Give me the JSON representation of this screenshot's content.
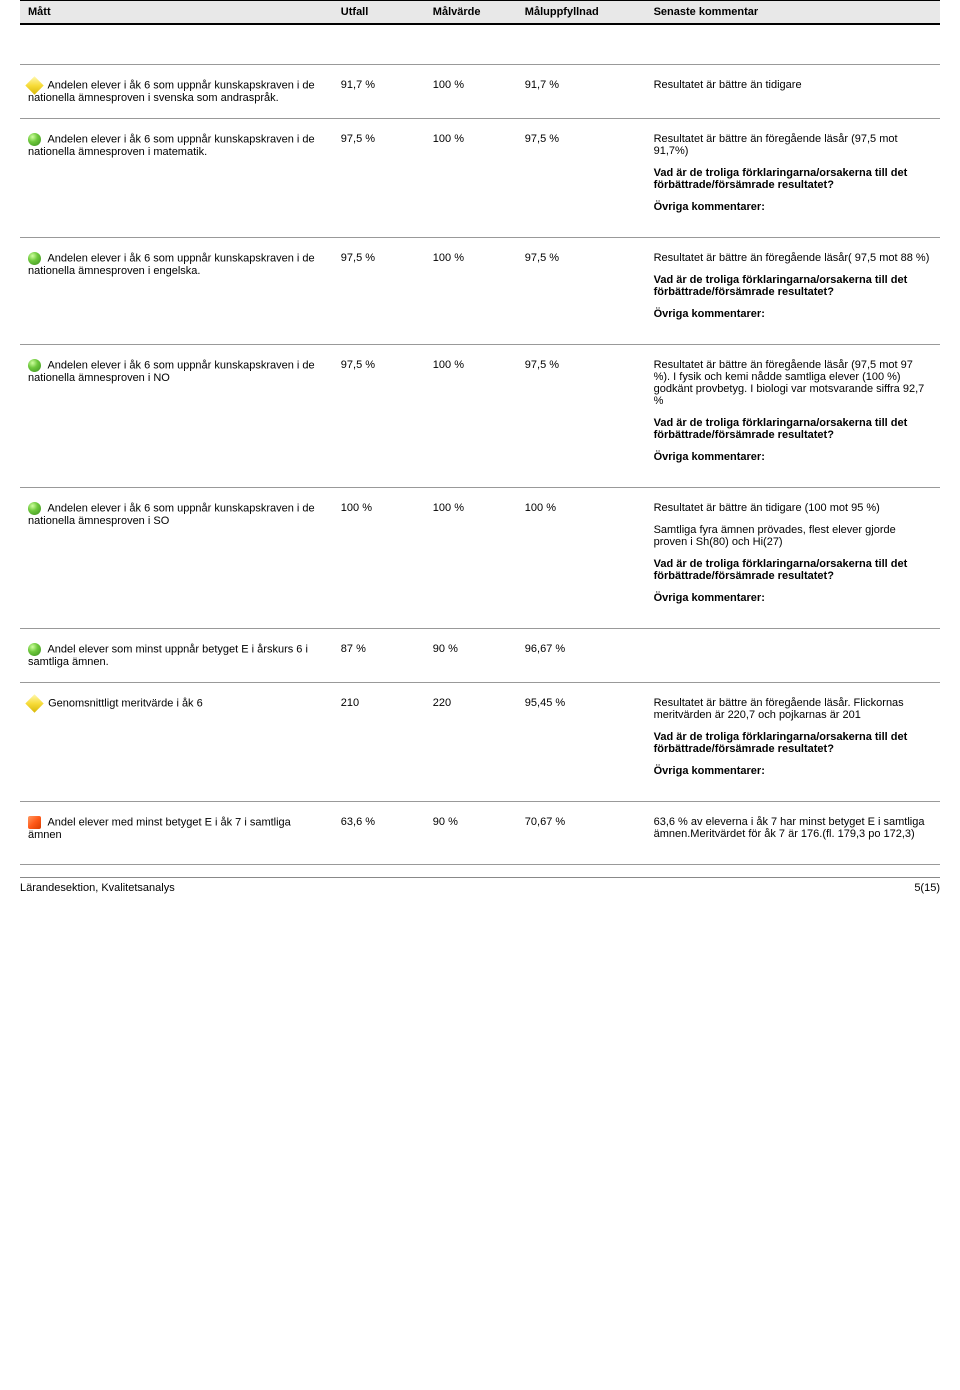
{
  "headers": {
    "matt": "Mått",
    "utfall": "Utfall",
    "malvarde": "Målvärde",
    "maluppfyllnad": "Måluppfyllnad",
    "senaste": "Senaste kommentar"
  },
  "vad_ar": "Vad är de troliga förklaringarna/orsakerna till det förbättrade/försämrade resultatet?",
  "ovriga": "Övriga kommentarer:",
  "r1": {
    "matt": "Andelen elever i åk 6 som uppnår kunskapskraven i de nationella ämnesproven i svenska som andraspråk.",
    "utfall": "91,7 %",
    "malvarde": "100 %",
    "malupp": "91,7 %",
    "c1": "Resultatet är bättre än tidigare"
  },
  "r2": {
    "matt": "Andelen elever i åk 6 som uppnår kunskapskraven i de nationella ämnesproven i matematik.",
    "utfall": "97,5 %",
    "malvarde": "100 %",
    "malupp": "97,5 %",
    "c1": "Resultatet är bättre än föregående läsår (97,5 mot 91,7%)"
  },
  "r3": {
    "matt": "Andelen elever i åk 6 som uppnår kunskapskraven i de nationella ämnesproven i engelska.",
    "utfall": "97,5 %",
    "malvarde": "100 %",
    "malupp": "97,5 %",
    "c1": "Resultatet är bättre än föregående läsår( 97,5 mot 88 %)"
  },
  "r4": {
    "matt": "Andelen elever i åk 6 som uppnår kunskapskraven i de nationella ämnesproven i NO",
    "utfall": "97,5 %",
    "malvarde": "100 %",
    "malupp": "97,5 %",
    "c1": "Resultatet är bättre än föregående läsår (97,5 mot 97 %). I fysik och kemi nådde samtliga elever (100 %) godkänt provbetyg. I biologi var motsvarande siffra 92,7 %"
  },
  "r5": {
    "matt": "Andelen elever i åk 6 som uppnår kunskapskraven i de nationella ämnesproven i SO",
    "utfall": "100 %",
    "malvarde": "100 %",
    "malupp": "100 %",
    "c1": "Resultatet är bättre än tidigare (100 mot 95 %)",
    "c2": "Samtliga fyra ämnen prövades, flest elever gjorde proven i Sh(80) och Hi(27)"
  },
  "r6": {
    "matt": "Andel elever som minst uppnår betyget E i årskurs 6 i samtliga ämnen.",
    "utfall": "87 %",
    "malvarde": "90 %",
    "malupp": "96,67 %"
  },
  "r7": {
    "matt": "Genomsnittligt meritvärde i åk 6",
    "utfall": "210",
    "malvarde": "220",
    "malupp": "95,45 %",
    "c1": "Resultatet är bättre än föregående läsår. Flickornas meritvärden är 220,7 och pojkarnas är 201"
  },
  "r8": {
    "matt": "Andel elever med minst betyget E i åk 7 i samtliga ämnen",
    "utfall": "63,6 %",
    "malvarde": "90 %",
    "malupp": "70,67 %",
    "c1": "63,6 % av eleverna i åk 7 har minst betyget E i samtliga ämnen.Meritvärdet för åk 7 är 176.(fl. 179,3 po 172,3)"
  },
  "footer": {
    "left": "Lärandesektion, Kvalitetsanalys",
    "right": "5(15)"
  }
}
